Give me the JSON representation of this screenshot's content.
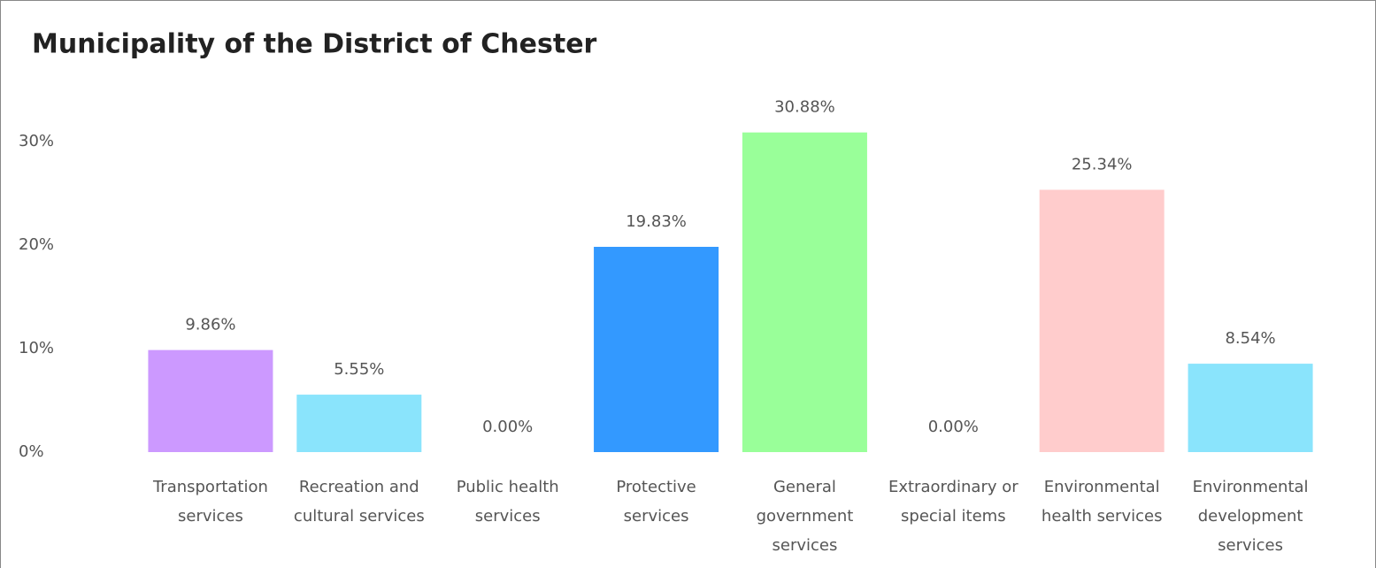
{
  "chart_data": {
    "type": "bar",
    "title": "Municipality of the District of Chester",
    "categories": [
      "Transportation services",
      "Recreation and cultural services",
      "Public health services",
      "Protective services",
      "General government services",
      "Extraordinary or special items",
      "Environmental health services",
      "Environmental development services"
    ],
    "values": [
      9.86,
      5.55,
      0,
      19.83,
      30.88,
      0,
      25.34,
      8.54
    ],
    "value_labels": [
      "9.86%",
      "5.55%",
      "0.00%",
      "19.83%",
      "30.88%",
      "0.00%",
      "25.34%",
      "8.54%"
    ],
    "colors": [
      "#cc99ff",
      "#8ae4fc",
      "#8ae4fc",
      "#3399ff",
      "#99ff99",
      "#cc99ff",
      "#ffcccc",
      "#8ae4fc"
    ],
    "ylim": [
      0,
      30
    ],
    "yticks": [
      {
        "value": 0,
        "label": "0%"
      },
      {
        "value": 10,
        "label": "10%"
      },
      {
        "value": 20,
        "label": "20%"
      },
      {
        "value": 30,
        "label": "30%"
      }
    ],
    "grid": false
  }
}
